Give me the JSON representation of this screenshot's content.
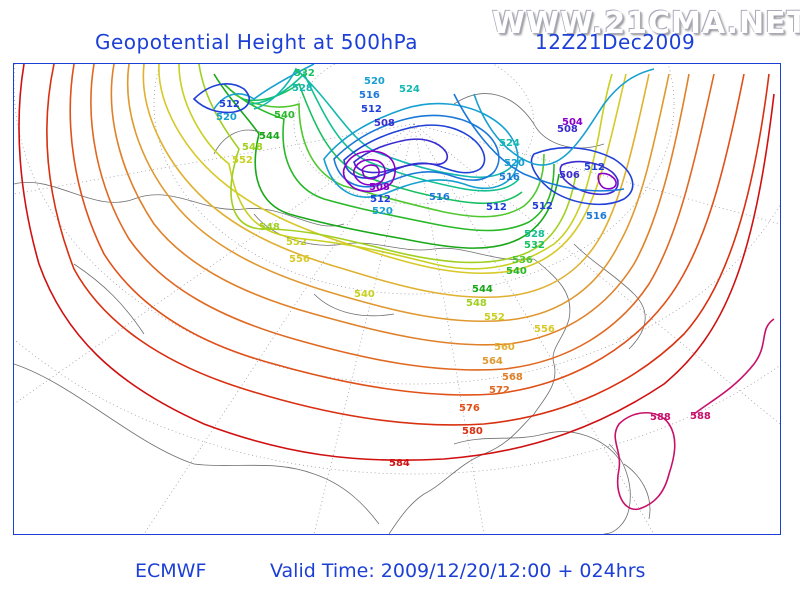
{
  "header": {
    "title": "Geopotential Height at 500hPa",
    "datestamp": "12Z21Dec2009",
    "watermark": "WWW.21CMA.NET"
  },
  "footer": {
    "model": "ECMWF",
    "valid_time": "Valid Time: 2009/12/20/12:00 + 024hrs"
  },
  "contour_levels": [
    {
      "value": "504",
      "color": "#8a00c8"
    },
    {
      "value": "508",
      "color": "#3a2bd0"
    },
    {
      "value": "512",
      "color": "#2040d8"
    },
    {
      "value": "516",
      "color": "#1a78d8"
    },
    {
      "value": "520",
      "color": "#17a0d0"
    },
    {
      "value": "524",
      "color": "#13b8b0"
    },
    {
      "value": "528",
      "color": "#12c090"
    },
    {
      "value": "532",
      "color": "#18c060"
    },
    {
      "value": "536",
      "color": "#50c830"
    },
    {
      "value": "540",
      "color": "#28b828"
    },
    {
      "value": "544",
      "color": "#18a818"
    },
    {
      "value": "548",
      "color": "#a0d020"
    },
    {
      "value": "552",
      "color": "#c8d020"
    },
    {
      "value": "556",
      "color": "#d8c828"
    },
    {
      "value": "560",
      "color": "#e0b030"
    },
    {
      "value": "564",
      "color": "#e09830"
    },
    {
      "value": "568",
      "color": "#e08028"
    },
    {
      "value": "572",
      "color": "#e06820"
    },
    {
      "value": "576",
      "color": "#e05018"
    },
    {
      "value": "580",
      "color": "#d83010"
    },
    {
      "value": "584",
      "color": "#d01010"
    },
    {
      "value": "588",
      "color": "#c8106a"
    }
  ]
}
